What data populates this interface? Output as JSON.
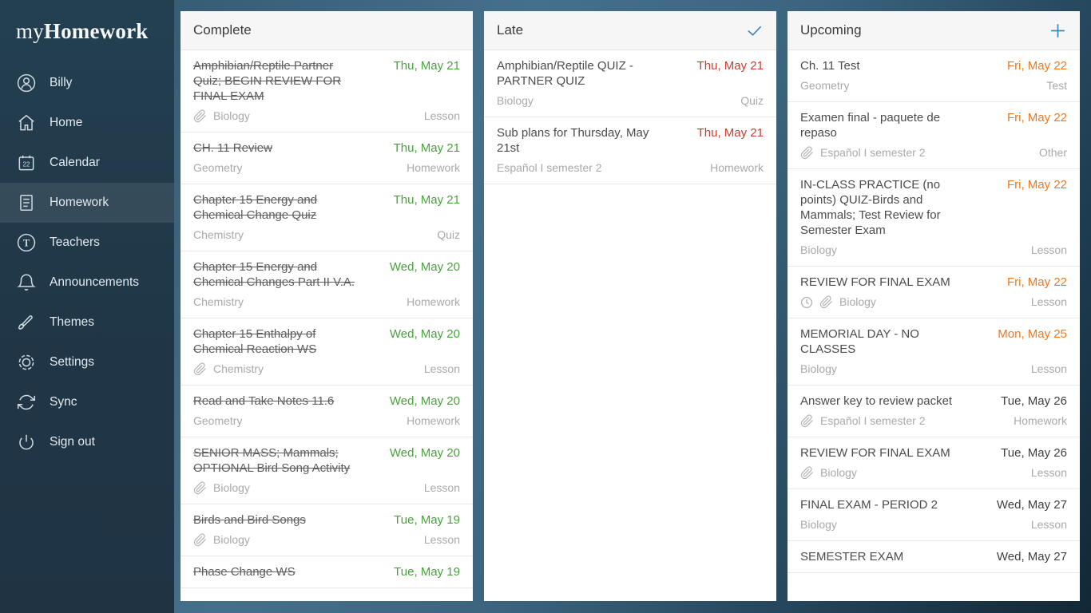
{
  "colors": {
    "accent_blue": "#3d87b8",
    "green": "#48a23c",
    "red": "#cb3d32",
    "orange": "#e87a25",
    "dark": "#3f3f3f"
  },
  "sidebar": {
    "logo": {
      "prefix": "my",
      "emphasis": "Homework"
    },
    "calendar_day": "22",
    "teacher_initial": "T",
    "items": [
      {
        "icon": "user",
        "label": "Billy",
        "active": false
      },
      {
        "icon": "home",
        "label": "Home",
        "active": false
      },
      {
        "icon": "calendar",
        "label": "Calendar",
        "active": false
      },
      {
        "icon": "document",
        "label": "Homework",
        "active": true
      },
      {
        "icon": "teacher",
        "label": "Teachers",
        "active": false
      },
      {
        "icon": "bell",
        "label": "Announcements",
        "active": false
      },
      {
        "icon": "paintbrush",
        "label": "Themes",
        "active": false
      },
      {
        "icon": "gear",
        "label": "Settings",
        "active": false
      },
      {
        "icon": "sync",
        "label": "Sync",
        "active": false
      },
      {
        "icon": "power",
        "label": "Sign out",
        "active": false
      }
    ]
  },
  "columns": [
    {
      "title": "Complete",
      "header_icon": null,
      "items": [
        {
          "title": "Amphibian/Reptile Partner Quiz; BEGIN REVIEW FOR FINAL EXAM",
          "date": "Thu, May 21",
          "date_color": "green",
          "struck": true,
          "attachment": true,
          "clock": false,
          "subject": "Biology",
          "type": "Lesson"
        },
        {
          "title": "CH. 11 Review",
          "date": "Thu, May 21",
          "date_color": "green",
          "struck": true,
          "attachment": false,
          "clock": false,
          "subject": "Geometry",
          "type": "Homework"
        },
        {
          "title": "Chapter 15 Energy and Chemical Change Quiz",
          "date": "Thu, May 21",
          "date_color": "green",
          "struck": true,
          "attachment": false,
          "clock": false,
          "subject": "Chemistry",
          "type": "Quiz"
        },
        {
          "title": "Chapter 15 Energy and Chemical Changes Part II V.A.",
          "date": "Wed, May 20",
          "date_color": "green",
          "struck": true,
          "attachment": false,
          "clock": false,
          "subject": "Chemistry",
          "type": "Homework"
        },
        {
          "title": "Chapter 15 Enthalpy of Chemical Reaction WS",
          "date": "Wed, May 20",
          "date_color": "green",
          "struck": true,
          "attachment": true,
          "clock": false,
          "subject": "Chemistry",
          "type": "Lesson"
        },
        {
          "title": "Read and Take Notes 11.6",
          "date": "Wed, May 20",
          "date_color": "green",
          "struck": true,
          "attachment": false,
          "clock": false,
          "subject": "Geometry",
          "type": "Homework"
        },
        {
          "title": "SENIOR MASS; Mammals; OPTIONAL Bird Song Activity",
          "date": "Wed, May 20",
          "date_color": "green",
          "struck": true,
          "attachment": true,
          "clock": false,
          "subject": "Biology",
          "type": "Lesson"
        },
        {
          "title": "Birds and Bird Songs",
          "date": "Tue, May 19",
          "date_color": "green",
          "struck": true,
          "attachment": true,
          "clock": false,
          "subject": "Biology",
          "type": "Lesson"
        },
        {
          "title": "Phase Change WS",
          "date": "Tue, May 19",
          "date_color": "green",
          "struck": true,
          "attachment": false,
          "clock": false,
          "subject": "",
          "type": ""
        }
      ]
    },
    {
      "title": "Late",
      "header_icon": "check",
      "items": [
        {
          "title": "Amphibian/Reptile QUIZ - PARTNER QUIZ",
          "date": "Thu, May 21",
          "date_color": "red",
          "struck": false,
          "attachment": false,
          "clock": false,
          "subject": "Biology",
          "type": "Quiz"
        },
        {
          "title": "Sub plans for Thursday, May 21st",
          "date": "Thu, May 21",
          "date_color": "red",
          "struck": false,
          "attachment": false,
          "clock": false,
          "subject": "Español I semester 2",
          "type": "Homework"
        }
      ]
    },
    {
      "title": "Upcoming",
      "header_icon": "plus",
      "items": [
        {
          "title": "Ch. 11 Test",
          "date": "Fri, May 22",
          "date_color": "orange",
          "struck": false,
          "attachment": false,
          "clock": false,
          "subject": "Geometry",
          "type": "Test"
        },
        {
          "title": "Examen final - paquete de repaso",
          "date": "Fri, May 22",
          "date_color": "orange",
          "struck": false,
          "attachment": true,
          "clock": false,
          "subject": "Español I semester 2",
          "type": "Other"
        },
        {
          "title": "IN-CLASS PRACTICE (no points) QUIZ-Birds and Mammals; Test Review for Semester Exam",
          "date": "Fri, May 22",
          "date_color": "orange",
          "struck": false,
          "attachment": false,
          "clock": false,
          "subject": "Biology",
          "type": "Lesson"
        },
        {
          "title": "REVIEW FOR FINAL EXAM",
          "date": "Fri, May 22",
          "date_color": "orange",
          "struck": false,
          "attachment": true,
          "clock": true,
          "subject": "Biology",
          "type": "Lesson"
        },
        {
          "title": "MEMORIAL DAY - NO CLASSES",
          "date": "Mon, May 25",
          "date_color": "orange",
          "struck": false,
          "attachment": false,
          "clock": false,
          "subject": "Biology",
          "type": "Lesson"
        },
        {
          "title": "Answer key to review packet",
          "date": "Tue, May 26",
          "date_color": "dark",
          "struck": false,
          "attachment": true,
          "clock": false,
          "subject": "Español I semester 2",
          "type": "Homework"
        },
        {
          "title": "REVIEW FOR FINAL EXAM",
          "date": "Tue, May 26",
          "date_color": "dark",
          "struck": false,
          "attachment": true,
          "clock": false,
          "subject": "Biology",
          "type": "Lesson"
        },
        {
          "title": "FINAL EXAM - PERIOD 2",
          "date": "Wed, May 27",
          "date_color": "dark",
          "struck": false,
          "attachment": false,
          "clock": false,
          "subject": "Biology",
          "type": "Lesson"
        },
        {
          "title": "SEMESTER EXAM",
          "date": "Wed, May 27",
          "date_color": "dark",
          "struck": false,
          "attachment": false,
          "clock": false,
          "subject": "",
          "type": ""
        }
      ]
    }
  ]
}
